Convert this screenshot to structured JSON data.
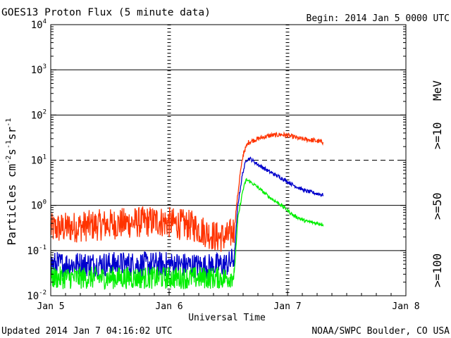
{
  "chart_data": {
    "type": "line",
    "title": "GOES13 Proton Flux (5 minute data)",
    "begin_label": "Begin: 2014 Jan 5 0000 UTC",
    "xlabel": "Universal Time",
    "ylabel_main": "Particles cm",
    "ylabel_exp1": "-2",
    "ylabel_mid": "s",
    "ylabel_exp2": "-1",
    "ylabel_mid2": "sr",
    "ylabel_exp3": "-1",
    "y_scale": "log",
    "ylim": [
      0.01,
      10000
    ],
    "xlim_days": [
      0,
      3
    ],
    "x_ticks": [
      {
        "day": 0,
        "label": "Jan 5"
      },
      {
        "day": 1,
        "label": "Jan 6"
      },
      {
        "day": 2,
        "label": "Jan 7"
      },
      {
        "day": 3,
        "label": "Jan 8"
      }
    ],
    "y_ticks": [
      {
        "value": 10000,
        "base": "10",
        "exp": "4"
      },
      {
        "value": 1000,
        "base": "10",
        "exp": "3"
      },
      {
        "value": 100,
        "base": "10",
        "exp": "2"
      },
      {
        "value": 10,
        "base": "10",
        "exp": "1"
      },
      {
        "value": 1,
        "base": "10",
        "exp": "0"
      },
      {
        "value": 0.1,
        "base": "10",
        "exp": "-1"
      },
      {
        "value": 0.01,
        "base": "10",
        "exp": "-2"
      }
    ],
    "dashed_threshold": 10,
    "series": [
      {
        "name": ">=10 MeV",
        "legend_label": ">=10",
        "legend_unit": "MeV",
        "color": "#ff3300",
        "noise": 0.35,
        "points": [
          [
            0.0,
            0.3
          ],
          [
            0.3,
            0.35
          ],
          [
            0.6,
            0.4
          ],
          [
            0.9,
            0.45
          ],
          [
            1.2,
            0.35
          ],
          [
            1.4,
            0.2
          ],
          [
            1.5,
            0.2
          ],
          [
            1.55,
            0.3
          ],
          [
            1.57,
            1.0
          ],
          [
            1.6,
            5.0
          ],
          [
            1.63,
            15.0
          ],
          [
            1.67,
            25.0
          ],
          [
            1.75,
            30.0
          ],
          [
            1.85,
            35.0
          ],
          [
            1.95,
            37.0
          ],
          [
            2.05,
            33.0
          ],
          [
            2.1,
            30.0
          ],
          [
            2.2,
            28.0
          ],
          [
            2.3,
            25.0
          ]
        ]
      },
      {
        "name": ">=50 MeV",
        "legend_label": ">=50",
        "color": "#0000cc",
        "noise": 0.28,
        "points": [
          [
            0.0,
            0.05
          ],
          [
            0.6,
            0.05
          ],
          [
            1.0,
            0.05
          ],
          [
            1.3,
            0.045
          ],
          [
            1.5,
            0.05
          ],
          [
            1.55,
            0.07
          ],
          [
            1.58,
            1.0
          ],
          [
            1.62,
            5.0
          ],
          [
            1.65,
            10.0
          ],
          [
            1.68,
            11.0
          ],
          [
            1.75,
            8.0
          ],
          [
            1.85,
            5.5
          ],
          [
            1.95,
            4.0
          ],
          [
            2.05,
            2.8
          ],
          [
            2.15,
            2.1
          ],
          [
            2.3,
            1.7
          ]
        ]
      },
      {
        "name": ">=100 MeV",
        "legend_label": ">=100",
        "color": "#00ee00",
        "noise": 0.25,
        "points": [
          [
            0.0,
            0.025
          ],
          [
            0.6,
            0.025
          ],
          [
            1.0,
            0.025
          ],
          [
            1.3,
            0.025
          ],
          [
            1.5,
            0.025
          ],
          [
            1.55,
            0.03
          ],
          [
            1.58,
            0.5
          ],
          [
            1.62,
            2.0
          ],
          [
            1.65,
            3.7
          ],
          [
            1.68,
            3.4
          ],
          [
            1.75,
            2.5
          ],
          [
            1.85,
            1.5
          ],
          [
            1.95,
            1.0
          ],
          [
            2.05,
            0.6
          ],
          [
            2.15,
            0.45
          ],
          [
            2.3,
            0.38
          ]
        ]
      }
    ]
  },
  "footer": {
    "updated": "Updated 2014 Jan  7 04:16:02 UTC",
    "source": "NOAA/SWPC Boulder, CO USA"
  }
}
